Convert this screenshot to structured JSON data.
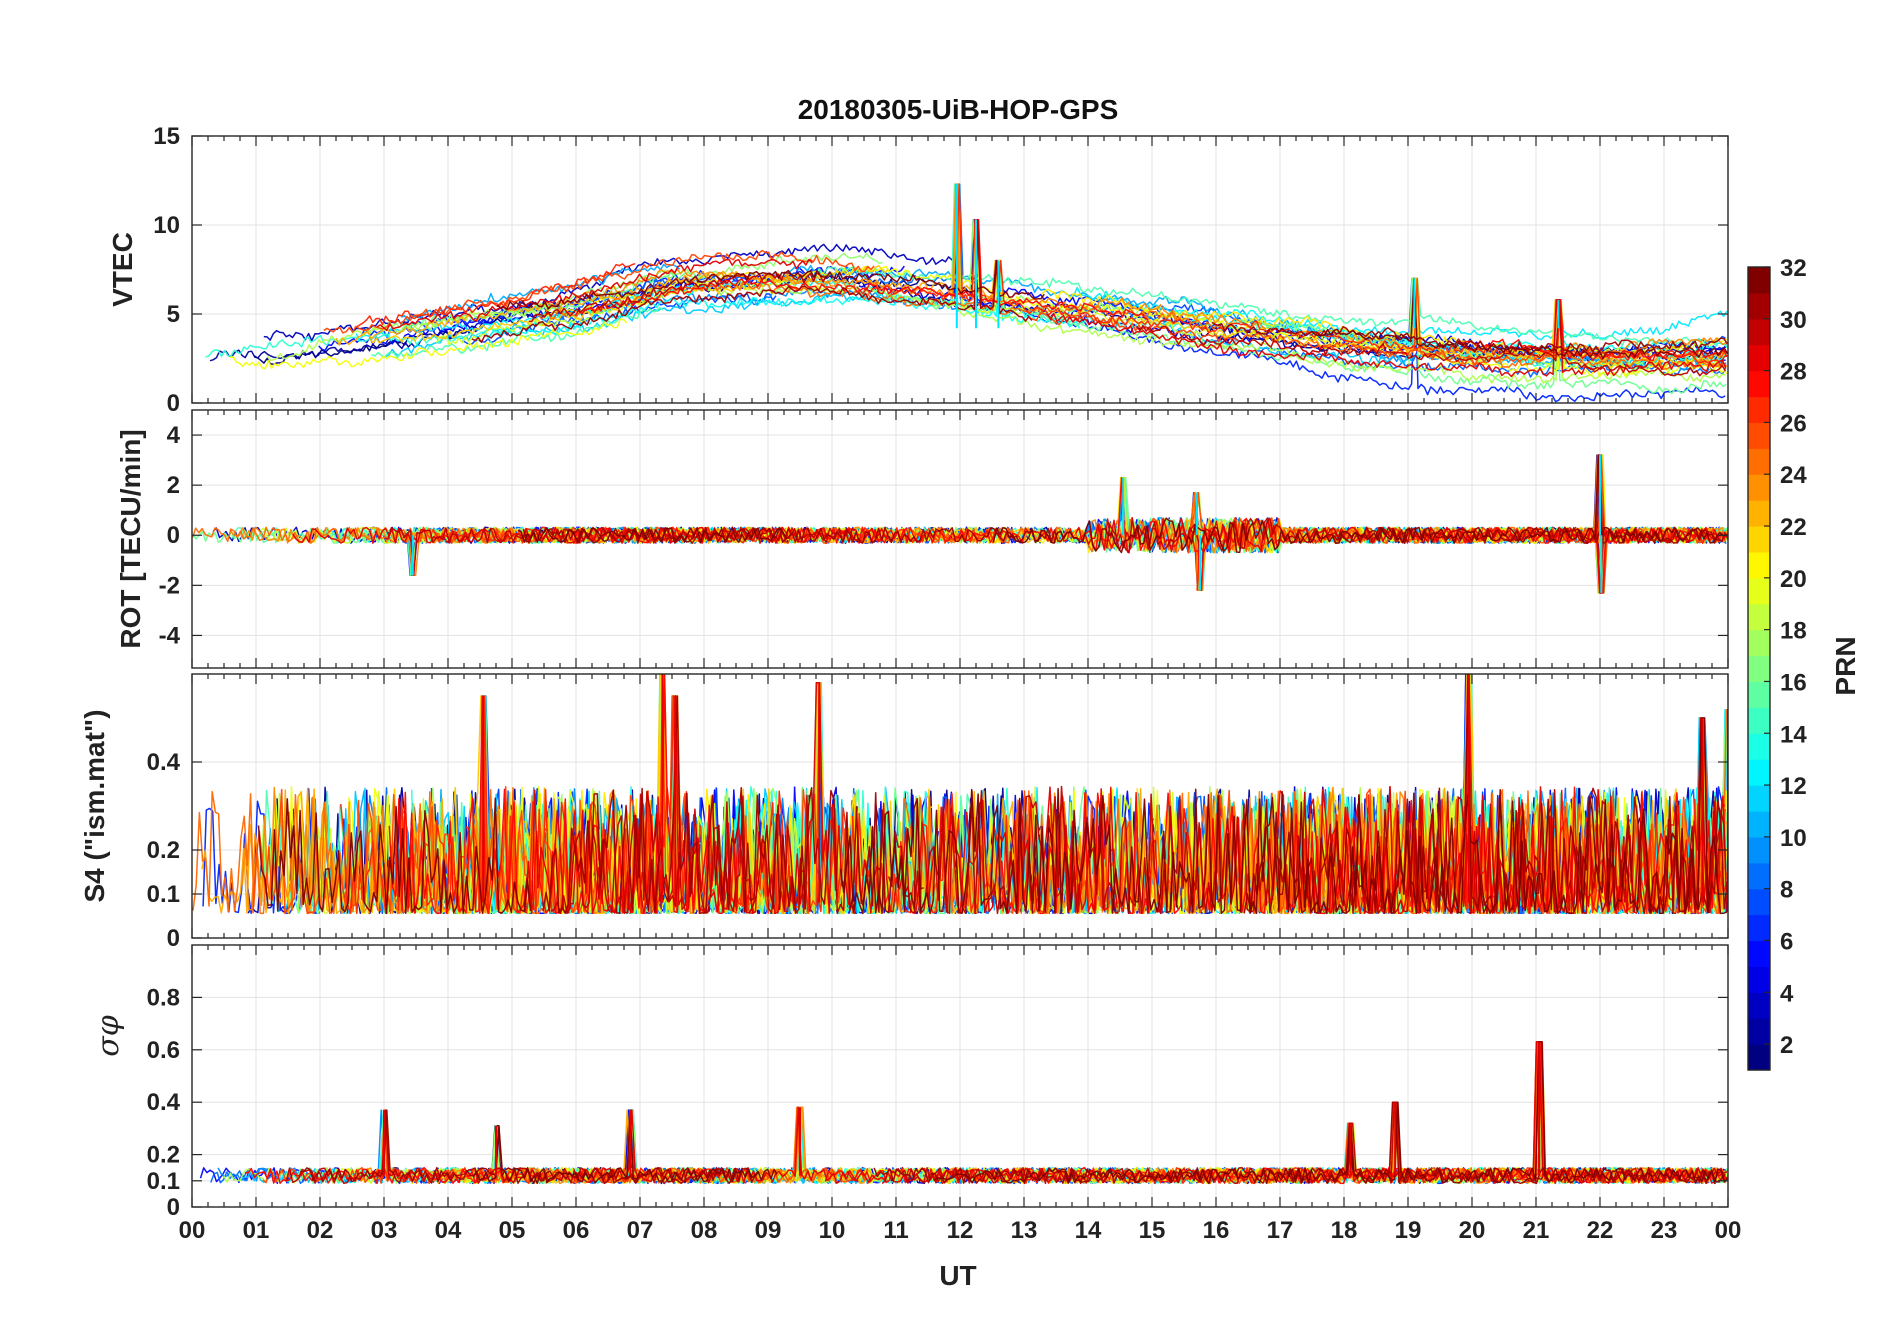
{
  "chart_data": {
    "type": "line",
    "title": "20180305-UiB-HOP-GPS",
    "xlabel": "UT",
    "x_range_hours": [
      0,
      24
    ],
    "x_tick_labels": [
      "00",
      "01",
      "02",
      "03",
      "04",
      "05",
      "06",
      "07",
      "08",
      "09",
      "10",
      "11",
      "12",
      "13",
      "14",
      "15",
      "16",
      "17",
      "18",
      "19",
      "20",
      "21",
      "22",
      "23",
      "00"
    ],
    "series_color_variable": "PRN",
    "colorbar": {
      "label": "PRN",
      "range": [
        1,
        32
      ],
      "tick_labels": [
        "2",
        "4",
        "6",
        "8",
        "10",
        "12",
        "14",
        "16",
        "18",
        "20",
        "22",
        "24",
        "26",
        "28",
        "30",
        "32"
      ],
      "colormap": "jet"
    },
    "panels": [
      {
        "id": "vtec",
        "ylabel": "VTEC",
        "ylim": [
          0,
          15
        ],
        "y_ticks": [
          0,
          5,
          10,
          15
        ],
        "y_tick_labels": [
          "0",
          "5",
          "10",
          "15"
        ],
        "baseline": 4.2,
        "profile": [
          [
            0,
            2.6
          ],
          [
            3,
            3.6
          ],
          [
            6,
            5.2
          ],
          [
            7.5,
            6.6
          ],
          [
            10,
            6.9
          ],
          [
            12,
            6.2
          ],
          [
            14,
            5.4
          ],
          [
            16,
            4.3
          ],
          [
            18,
            3.5
          ],
          [
            20,
            2.9
          ],
          [
            22,
            2.6
          ],
          [
            24,
            2.7
          ]
        ],
        "noise": 0.45,
        "events": [
          {
            "t": 11.95,
            "value": 12.3
          },
          {
            "t": 12.25,
            "value": 10.3
          },
          {
            "t": 12.6,
            "value": 8.0
          },
          {
            "t": 19.1,
            "value": 7.0
          },
          {
            "t": 21.35,
            "value": 5.8
          }
        ]
      },
      {
        "id": "rot",
        "ylabel": "ROT [TECU/min]",
        "ylim": [
          -5.3,
          5
        ],
        "y_ticks": [
          -4,
          -2,
          0,
          2,
          4
        ],
        "y_tick_labels": [
          "-4",
          "-2",
          "0",
          "2",
          "4"
        ],
        "baseline": 0,
        "noise": 0.32,
        "events": [
          {
            "t": 15.75,
            "value": -2.2
          },
          {
            "t": 15.7,
            "value": 1.7
          },
          {
            "t": 22.0,
            "value": 3.2
          },
          {
            "t": 22.02,
            "value": -2.3
          },
          {
            "t": 14.55,
            "value": 2.3
          },
          {
            "t": 3.45,
            "value": -1.6
          }
        ]
      },
      {
        "id": "s4",
        "ylabel": "S4 (\"ism.mat\")",
        "ylim": [
          0,
          0.6
        ],
        "y_ticks": [
          0,
          0.1,
          0.2,
          0.4
        ],
        "y_tick_labels": [
          "0",
          "0.1",
          "0.2",
          "0.4"
        ],
        "baseline": 0.08,
        "noise": 0.09,
        "events": [
          {
            "t": 7.35,
            "value": 0.6
          },
          {
            "t": 7.55,
            "value": 0.55
          },
          {
            "t": 9.8,
            "value": 0.58
          },
          {
            "t": 19.95,
            "value": 0.6
          },
          {
            "t": 4.55,
            "value": 0.55
          },
          {
            "t": 24.0,
            "value": 0.52
          },
          {
            "t": 23.6,
            "value": 0.5
          }
        ]
      },
      {
        "id": "sigma_phi",
        "ylabel": "σφ",
        "ylim": [
          0,
          1
        ],
        "y_ticks": [
          0,
          0.1,
          0.2,
          0.4,
          0.6,
          0.8
        ],
        "y_tick_labels": [
          "0",
          "0.1",
          "0.2",
          "0.4",
          "0.6",
          "0.8"
        ],
        "baseline": 0.12,
        "noise": 0.03,
        "events": [
          {
            "t": 21.05,
            "value": 0.63
          },
          {
            "t": 3.0,
            "value": 0.37
          },
          {
            "t": 6.85,
            "value": 0.37
          },
          {
            "t": 9.5,
            "value": 0.38
          },
          {
            "t": 18.8,
            "value": 0.4
          },
          {
            "t": 18.1,
            "value": 0.32
          },
          {
            "t": 4.75,
            "value": 0.31
          }
        ]
      }
    ]
  }
}
